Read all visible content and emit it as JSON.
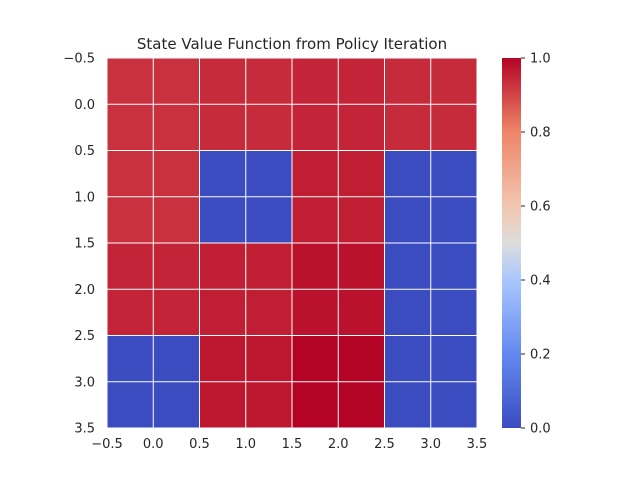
{
  "chart_data": {
    "type": "heatmap",
    "title": "State Value Function from Policy Iteration",
    "xlabel": "",
    "ylabel": "",
    "colormap": "coolwarm",
    "grid": true,
    "grid_color": "#ffffff",
    "xlim": [
      -0.5,
      3.5
    ],
    "ylim": [
      3.5,
      -0.5
    ],
    "y_inverted": true,
    "xticks": [
      "−0.5",
      "0.0",
      "0.5",
      "1.0",
      "1.5",
      "2.0",
      "2.5",
      "3.0",
      "3.5"
    ],
    "yticks": [
      "−0.5",
      "0.0",
      "0.5",
      "1.0",
      "1.5",
      "2.0",
      "2.5",
      "3.0",
      "3.5"
    ],
    "colorbar": {
      "range": [
        0.0,
        1.0
      ],
      "ticks": [
        "0.0",
        "0.2",
        "0.4",
        "0.6",
        "0.8",
        "1.0"
      ]
    },
    "values": [
      [
        0.93,
        0.93,
        0.94,
        0.94,
        0.95,
        0.95,
        0.94,
        0.94
      ],
      [
        0.93,
        0.93,
        0.94,
        0.94,
        0.95,
        0.95,
        0.94,
        0.94
      ],
      [
        0.93,
        0.93,
        0.0,
        0.0,
        0.96,
        0.96,
        0.0,
        0.0
      ],
      [
        0.93,
        0.93,
        0.0,
        0.0,
        0.96,
        0.96,
        0.0,
        0.0
      ],
      [
        0.95,
        0.95,
        0.96,
        0.96,
        0.98,
        0.98,
        0.0,
        0.0
      ],
      [
        0.95,
        0.95,
        0.96,
        0.96,
        0.98,
        0.98,
        0.0,
        0.0
      ],
      [
        0.0,
        0.0,
        0.97,
        0.97,
        1.0,
        1.0,
        0.0,
        0.0
      ],
      [
        0.0,
        0.0,
        0.97,
        0.97,
        1.0,
        1.0,
        0.0,
        0.0
      ]
    ]
  }
}
